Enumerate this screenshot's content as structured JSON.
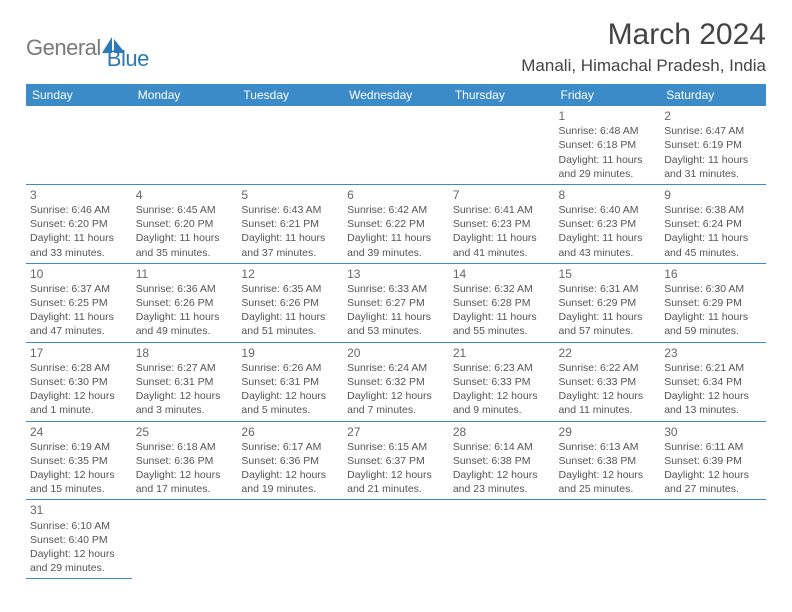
{
  "brand": {
    "part1": "General",
    "part2": "Blue"
  },
  "title": "March 2024",
  "location": "Manali, Himachal Pradesh, India",
  "colors": {
    "header_bg": "#3b8bc8",
    "header_text": "#ffffff",
    "border": "#3b8bc8",
    "brand_gray": "#7a7a7a",
    "brand_blue": "#2a7ab9",
    "text": "#555555"
  },
  "day_headers": [
    "Sunday",
    "Monday",
    "Tuesday",
    "Wednesday",
    "Thursday",
    "Friday",
    "Saturday"
  ],
  "weeks": [
    [
      null,
      null,
      null,
      null,
      null,
      {
        "n": "1",
        "sunrise": "Sunrise: 6:48 AM",
        "sunset": "Sunset: 6:18 PM",
        "daylight": "Daylight: 11 hours and 29 minutes."
      },
      {
        "n": "2",
        "sunrise": "Sunrise: 6:47 AM",
        "sunset": "Sunset: 6:19 PM",
        "daylight": "Daylight: 11 hours and 31 minutes."
      }
    ],
    [
      {
        "n": "3",
        "sunrise": "Sunrise: 6:46 AM",
        "sunset": "Sunset: 6:20 PM",
        "daylight": "Daylight: 11 hours and 33 minutes."
      },
      {
        "n": "4",
        "sunrise": "Sunrise: 6:45 AM",
        "sunset": "Sunset: 6:20 PM",
        "daylight": "Daylight: 11 hours and 35 minutes."
      },
      {
        "n": "5",
        "sunrise": "Sunrise: 6:43 AM",
        "sunset": "Sunset: 6:21 PM",
        "daylight": "Daylight: 11 hours and 37 minutes."
      },
      {
        "n": "6",
        "sunrise": "Sunrise: 6:42 AM",
        "sunset": "Sunset: 6:22 PM",
        "daylight": "Daylight: 11 hours and 39 minutes."
      },
      {
        "n": "7",
        "sunrise": "Sunrise: 6:41 AM",
        "sunset": "Sunset: 6:23 PM",
        "daylight": "Daylight: 11 hours and 41 minutes."
      },
      {
        "n": "8",
        "sunrise": "Sunrise: 6:40 AM",
        "sunset": "Sunset: 6:23 PM",
        "daylight": "Daylight: 11 hours and 43 minutes."
      },
      {
        "n": "9",
        "sunrise": "Sunrise: 6:38 AM",
        "sunset": "Sunset: 6:24 PM",
        "daylight": "Daylight: 11 hours and 45 minutes."
      }
    ],
    [
      {
        "n": "10",
        "sunrise": "Sunrise: 6:37 AM",
        "sunset": "Sunset: 6:25 PM",
        "daylight": "Daylight: 11 hours and 47 minutes."
      },
      {
        "n": "11",
        "sunrise": "Sunrise: 6:36 AM",
        "sunset": "Sunset: 6:26 PM",
        "daylight": "Daylight: 11 hours and 49 minutes."
      },
      {
        "n": "12",
        "sunrise": "Sunrise: 6:35 AM",
        "sunset": "Sunset: 6:26 PM",
        "daylight": "Daylight: 11 hours and 51 minutes."
      },
      {
        "n": "13",
        "sunrise": "Sunrise: 6:33 AM",
        "sunset": "Sunset: 6:27 PM",
        "daylight": "Daylight: 11 hours and 53 minutes."
      },
      {
        "n": "14",
        "sunrise": "Sunrise: 6:32 AM",
        "sunset": "Sunset: 6:28 PM",
        "daylight": "Daylight: 11 hours and 55 minutes."
      },
      {
        "n": "15",
        "sunrise": "Sunrise: 6:31 AM",
        "sunset": "Sunset: 6:29 PM",
        "daylight": "Daylight: 11 hours and 57 minutes."
      },
      {
        "n": "16",
        "sunrise": "Sunrise: 6:30 AM",
        "sunset": "Sunset: 6:29 PM",
        "daylight": "Daylight: 11 hours and 59 minutes."
      }
    ],
    [
      {
        "n": "17",
        "sunrise": "Sunrise: 6:28 AM",
        "sunset": "Sunset: 6:30 PM",
        "daylight": "Daylight: 12 hours and 1 minute."
      },
      {
        "n": "18",
        "sunrise": "Sunrise: 6:27 AM",
        "sunset": "Sunset: 6:31 PM",
        "daylight": "Daylight: 12 hours and 3 minutes."
      },
      {
        "n": "19",
        "sunrise": "Sunrise: 6:26 AM",
        "sunset": "Sunset: 6:31 PM",
        "daylight": "Daylight: 12 hours and 5 minutes."
      },
      {
        "n": "20",
        "sunrise": "Sunrise: 6:24 AM",
        "sunset": "Sunset: 6:32 PM",
        "daylight": "Daylight: 12 hours and 7 minutes."
      },
      {
        "n": "21",
        "sunrise": "Sunrise: 6:23 AM",
        "sunset": "Sunset: 6:33 PM",
        "daylight": "Daylight: 12 hours and 9 minutes."
      },
      {
        "n": "22",
        "sunrise": "Sunrise: 6:22 AM",
        "sunset": "Sunset: 6:33 PM",
        "daylight": "Daylight: 12 hours and 11 minutes."
      },
      {
        "n": "23",
        "sunrise": "Sunrise: 6:21 AM",
        "sunset": "Sunset: 6:34 PM",
        "daylight": "Daylight: 12 hours and 13 minutes."
      }
    ],
    [
      {
        "n": "24",
        "sunrise": "Sunrise: 6:19 AM",
        "sunset": "Sunset: 6:35 PM",
        "daylight": "Daylight: 12 hours and 15 minutes."
      },
      {
        "n": "25",
        "sunrise": "Sunrise: 6:18 AM",
        "sunset": "Sunset: 6:36 PM",
        "daylight": "Daylight: 12 hours and 17 minutes."
      },
      {
        "n": "26",
        "sunrise": "Sunrise: 6:17 AM",
        "sunset": "Sunset: 6:36 PM",
        "daylight": "Daylight: 12 hours and 19 minutes."
      },
      {
        "n": "27",
        "sunrise": "Sunrise: 6:15 AM",
        "sunset": "Sunset: 6:37 PM",
        "daylight": "Daylight: 12 hours and 21 minutes."
      },
      {
        "n": "28",
        "sunrise": "Sunrise: 6:14 AM",
        "sunset": "Sunset: 6:38 PM",
        "daylight": "Daylight: 12 hours and 23 minutes."
      },
      {
        "n": "29",
        "sunrise": "Sunrise: 6:13 AM",
        "sunset": "Sunset: 6:38 PM",
        "daylight": "Daylight: 12 hours and 25 minutes."
      },
      {
        "n": "30",
        "sunrise": "Sunrise: 6:11 AM",
        "sunset": "Sunset: 6:39 PM",
        "daylight": "Daylight: 12 hours and 27 minutes."
      }
    ],
    [
      {
        "n": "31",
        "sunrise": "Sunrise: 6:10 AM",
        "sunset": "Sunset: 6:40 PM",
        "daylight": "Daylight: 12 hours and 29 minutes."
      },
      null,
      null,
      null,
      null,
      null,
      null
    ]
  ]
}
